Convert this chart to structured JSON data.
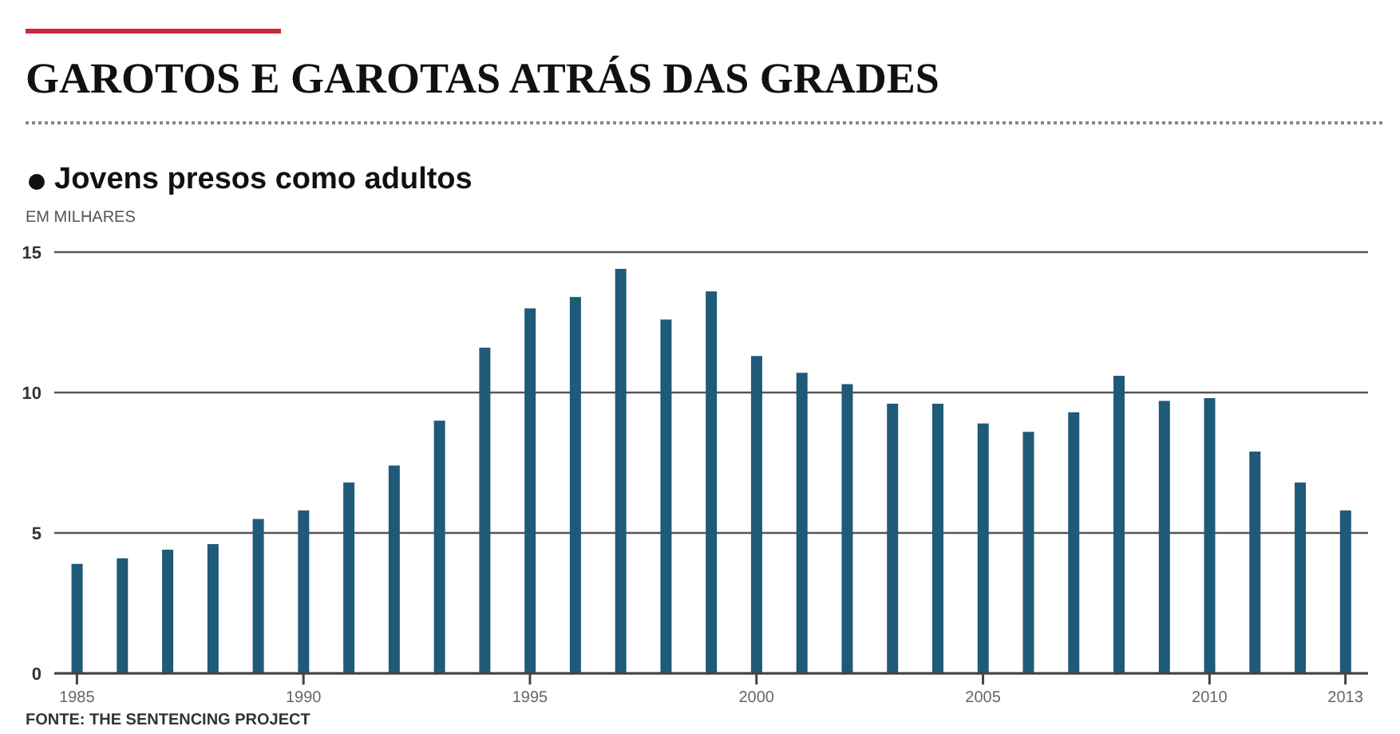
{
  "chart_data": {
    "type": "bar",
    "title": "GAROTOS E GAROTAS ATRÁS DAS GRADES",
    "subtitle": "Jovens presos como adultos",
    "ylabel": "EM MILHARES",
    "categories": [
      "1985",
      null,
      null,
      null,
      null,
      "1990",
      null,
      null,
      null,
      null,
      "1995",
      null,
      null,
      null,
      null,
      "2000",
      null,
      null,
      null,
      null,
      "2005",
      null,
      null,
      null,
      null,
      "2010",
      null,
      null,
      "2013"
    ],
    "values": [
      3.9,
      4.1,
      4.4,
      4.6,
      5.5,
      5.8,
      6.8,
      7.4,
      9.0,
      11.6,
      13.0,
      13.4,
      14.4,
      12.6,
      13.6,
      11.3,
      10.7,
      10.3,
      9.6,
      9.6,
      8.9,
      8.6,
      9.3,
      10.6,
      9.7,
      9.8,
      7.9,
      6.8,
      5.8
    ],
    "color": "#1f5a78",
    "ylim": [
      0,
      15
    ],
    "yticks": [
      0,
      5,
      10,
      15
    ],
    "grid": "y",
    "legend": false,
    "annotations": [
      "FONTE: THE SENTENCING PROJECT"
    ]
  }
}
